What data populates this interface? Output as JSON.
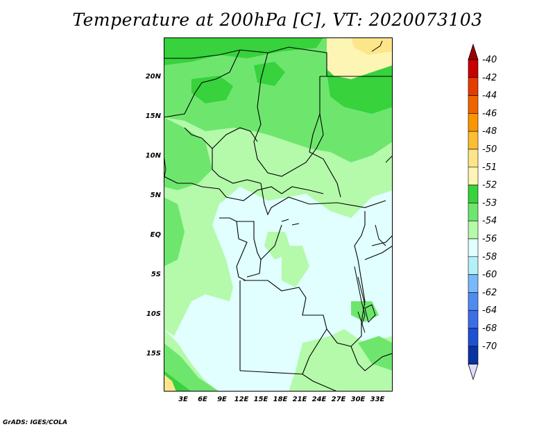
{
  "title": "Temperature at 200hPa [C], VT: 2020073103",
  "credit": "GrADS: IGES/COLA",
  "lat_ticks": [
    "20N",
    "15N",
    "10N",
    "5N",
    "EQ",
    "5S",
    "10S",
    "15S"
  ],
  "lon_ticks": [
    "3E",
    "6E",
    "9E",
    "12E",
    "15E",
    "18E",
    "21E",
    "24E",
    "27E",
    "30E",
    "33E"
  ],
  "colorbar": [
    {
      "label": "-40",
      "color": "#c80000"
    },
    {
      "label": "-42",
      "color": "#e63c00"
    },
    {
      "label": "-44",
      "color": "#f06400"
    },
    {
      "label": "-46",
      "color": "#fa9600"
    },
    {
      "label": "-48",
      "color": "#fcbe32"
    },
    {
      "label": "-50",
      "color": "#fde68a"
    },
    {
      "label": "-51",
      "color": "#fdf5b4"
    },
    {
      "label": "-52",
      "color": "#37d23c"
    },
    {
      "label": "-53",
      "color": "#6ee66e"
    },
    {
      "label": "-54",
      "color": "#b4faaa"
    },
    {
      "label": "-56",
      "color": "#e1ffff"
    },
    {
      "label": "-58",
      "color": "#b4f0fa"
    },
    {
      "label": "-60",
      "color": "#78b9fa"
    },
    {
      "label": "-62",
      "color": "#508cf0"
    },
    {
      "label": "-64",
      "color": "#3c6ee6"
    },
    {
      "label": "-68",
      "color": "#1e50d2"
    },
    {
      "label": "-70",
      "color": "#0a32a0"
    }
  ],
  "colorbar_bottom_color": "#dcdcff",
  "colorbar_top_color": "#a00000"
}
